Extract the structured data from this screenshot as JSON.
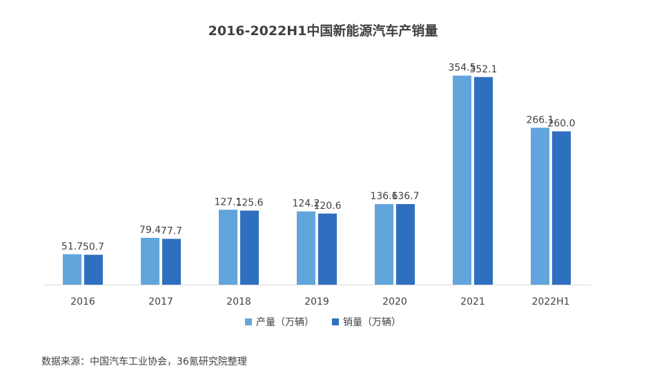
{
  "chart_data": {
    "type": "bar",
    "title": "2016-2022H1中国新能源汽车产销量",
    "categories": [
      "2016",
      "2017",
      "2018",
      "2019",
      "2020",
      "2021",
      "2022H1"
    ],
    "series": [
      {
        "name": "产量（万辆）",
        "color": "#62a5dd",
        "values": [
          51.7,
          79.4,
          127.1,
          124.2,
          136.6,
          354.5,
          266.1
        ]
      },
      {
        "name": "销量（万辆）",
        "color": "#2f6fbf",
        "values": [
          50.7,
          77.7,
          125.6,
          120.6,
          136.7,
          352.1,
          260.0
        ]
      }
    ],
    "data_labels": [
      [
        "51.7",
        "79.4",
        "127.1",
        "124.2",
        "136.6",
        "354.5",
        "266.1"
      ],
      [
        "50.7",
        "77.7",
        "125.6",
        "120.6",
        "136.7",
        "352.1",
        "260.0"
      ]
    ],
    "ylim": [
      0,
      360
    ],
    "grid": false,
    "legend_position": "bottom"
  },
  "source": "数据来源：中国汽车工业协会，36氪研究院整理"
}
